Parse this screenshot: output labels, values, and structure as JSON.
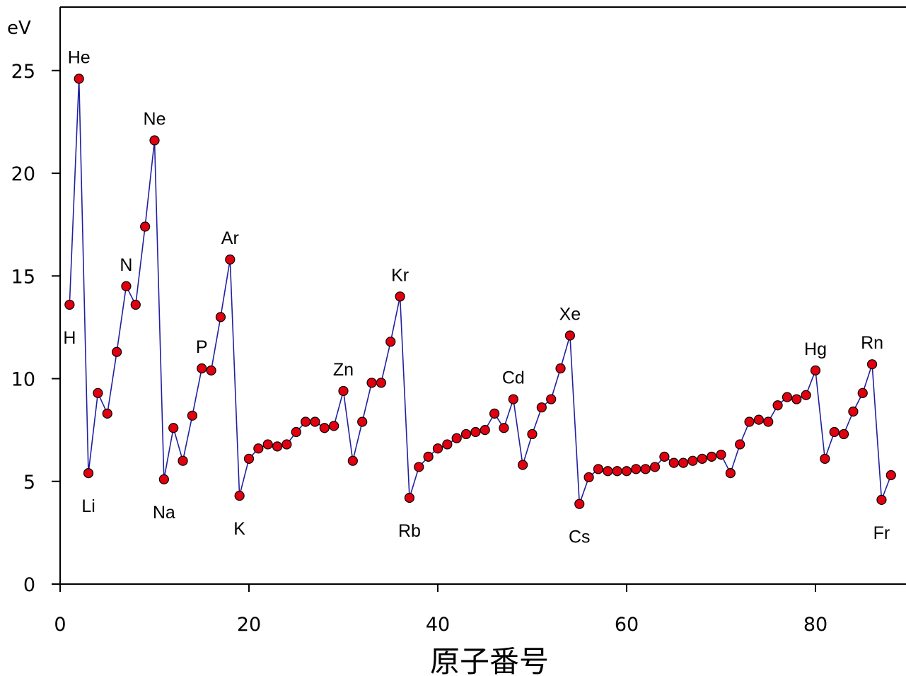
{
  "chart_data": {
    "type": "line",
    "title": "",
    "xlabel": "原子番号",
    "ylabel": "eV",
    "xlim": [
      0,
      89
    ],
    "ylim": [
      0,
      28
    ],
    "xticks": [
      "0",
      "20",
      "40",
      "60",
      "80"
    ],
    "yticks": [
      "0",
      "5",
      "10",
      "15",
      "20",
      "25"
    ],
    "grid": false,
    "legend": "none",
    "colors": {
      "line": "#2020a0",
      "marker_fill": "#e00010",
      "marker_edge": "#000000"
    },
    "series": [
      {
        "x": [
          1,
          2,
          3,
          4,
          5,
          6,
          7,
          8,
          9,
          10,
          11,
          12,
          13,
          14,
          15,
          16,
          17,
          18,
          19,
          20,
          21,
          22,
          23,
          24,
          25,
          26,
          27,
          28,
          29,
          30,
          31,
          32,
          33,
          34,
          35,
          36,
          37,
          38,
          39,
          40,
          41,
          42,
          43,
          44,
          45,
          46,
          47,
          48,
          49,
          50,
          51,
          52,
          53,
          54,
          55,
          56,
          57,
          58,
          59,
          60,
          61,
          62,
          63,
          64,
          65,
          66,
          67,
          68,
          69,
          70,
          71,
          72,
          73,
          74,
          75,
          76,
          77,
          78,
          79,
          80,
          81,
          82,
          83,
          84,
          85,
          86,
          87,
          88
        ],
        "values": [
          13.6,
          24.6,
          5.4,
          9.3,
          8.3,
          11.3,
          14.5,
          13.6,
          17.4,
          21.6,
          5.1,
          7.6,
          6.0,
          8.2,
          10.5,
          10.4,
          13.0,
          15.8,
          4.3,
          6.1,
          6.6,
          6.8,
          6.7,
          6.8,
          7.4,
          7.9,
          7.9,
          7.6,
          7.7,
          9.4,
          6.0,
          7.9,
          9.8,
          9.8,
          11.8,
          14.0,
          4.2,
          5.7,
          6.2,
          6.6,
          6.8,
          7.1,
          7.3,
          7.4,
          7.5,
          8.3,
          7.6,
          9.0,
          5.8,
          7.3,
          8.6,
          9.0,
          10.5,
          12.1,
          3.9,
          5.2,
          5.6,
          5.5,
          5.5,
          5.5,
          5.6,
          5.6,
          5.7,
          6.2,
          5.9,
          5.9,
          6.0,
          6.1,
          6.2,
          6.3,
          5.4,
          6.8,
          7.9,
          8.0,
          7.9,
          8.7,
          9.1,
          9.0,
          9.2,
          10.4,
          6.1,
          7.4,
          7.3,
          8.4,
          9.3,
          10.7,
          4.1,
          5.3
        ]
      }
    ],
    "annotations": [
      {
        "text": "He",
        "x": 2,
        "y": 24.6,
        "pos": "above"
      },
      {
        "text": "H",
        "x": 1,
        "y": 13.6,
        "pos": "below"
      },
      {
        "text": "Li",
        "x": 3,
        "y": 5.4,
        "pos": "below"
      },
      {
        "text": "N",
        "x": 7,
        "y": 14.5,
        "pos": "above"
      },
      {
        "text": "Ne",
        "x": 10,
        "y": 21.6,
        "pos": "above"
      },
      {
        "text": "Na",
        "x": 11,
        "y": 5.1,
        "pos": "below"
      },
      {
        "text": "P",
        "x": 15,
        "y": 10.5,
        "pos": "above"
      },
      {
        "text": "Ar",
        "x": 18,
        "y": 15.8,
        "pos": "above"
      },
      {
        "text": "K",
        "x": 19,
        "y": 4.3,
        "pos": "below"
      },
      {
        "text": "Zn",
        "x": 30,
        "y": 9.4,
        "pos": "above"
      },
      {
        "text": "Kr",
        "x": 36,
        "y": 14.0,
        "pos": "above"
      },
      {
        "text": "Rb",
        "x": 37,
        "y": 4.2,
        "pos": "below"
      },
      {
        "text": "Cd",
        "x": 48,
        "y": 9.0,
        "pos": "above"
      },
      {
        "text": "Xe",
        "x": 54,
        "y": 12.1,
        "pos": "above"
      },
      {
        "text": "Cs",
        "x": 55,
        "y": 3.9,
        "pos": "below"
      },
      {
        "text": "Hg",
        "x": 80,
        "y": 10.4,
        "pos": "above"
      },
      {
        "text": "Rn",
        "x": 86,
        "y": 10.7,
        "pos": "above"
      },
      {
        "text": "Fr",
        "x": 87,
        "y": 4.1,
        "pos": "below"
      }
    ]
  }
}
